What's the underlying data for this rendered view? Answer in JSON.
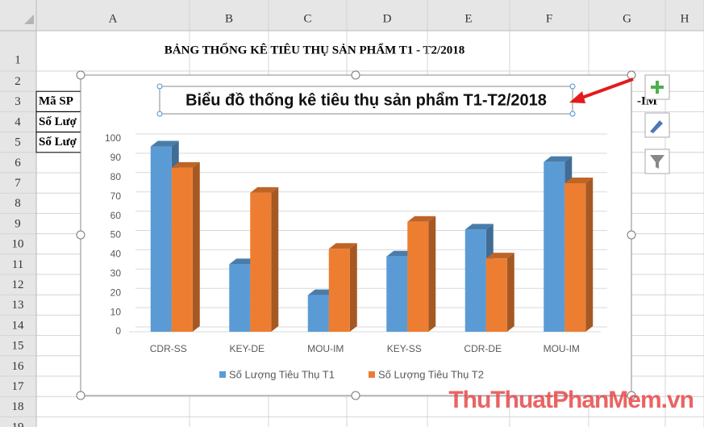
{
  "sheet": {
    "columns": [
      "A",
      "B",
      "C",
      "D",
      "E",
      "F",
      "G",
      "H"
    ],
    "rows": [
      "1",
      "2",
      "3",
      "4",
      "5",
      "6",
      "7",
      "8",
      "9",
      "10",
      "11",
      "12",
      "13",
      "14",
      "15",
      "16",
      "17",
      "18",
      "19"
    ],
    "title": "BẢNG THỐNG KÊ TIÊU THỤ SẢN PHẨM T1 - T2/2018",
    "cells": [
      "Mã SP",
      "Số Lượ",
      "Số Lượ"
    ],
    "right_cell": "-IM"
  },
  "watermark": "ThuThuatPhanMem.vn",
  "chart_data": {
    "type": "bar",
    "title": "Biểu đồ thống kê tiêu thụ sản phẩm T1-T2/2018",
    "categories": [
      "CDR-SS",
      "KEY-DE",
      "MOU-IM",
      "KEY-SS",
      "CDR-DE",
      "MOU-IM"
    ],
    "series": [
      {
        "name": "Số Lượng Tiêu Thụ T1",
        "color": "#5b9bd5",
        "values": [
          96,
          35,
          19,
          39,
          53,
          88
        ]
      },
      {
        "name": "Số Lượng Tiêu Thụ T2",
        "color": "#ed7d31",
        "values": [
          85,
          72,
          43,
          57,
          38,
          77
        ]
      }
    ],
    "ylim": [
      0,
      100
    ],
    "yticks": [
      0,
      10,
      20,
      30,
      40,
      50,
      60,
      70,
      80,
      90,
      100
    ],
    "grid": true,
    "legend": "bottom"
  }
}
